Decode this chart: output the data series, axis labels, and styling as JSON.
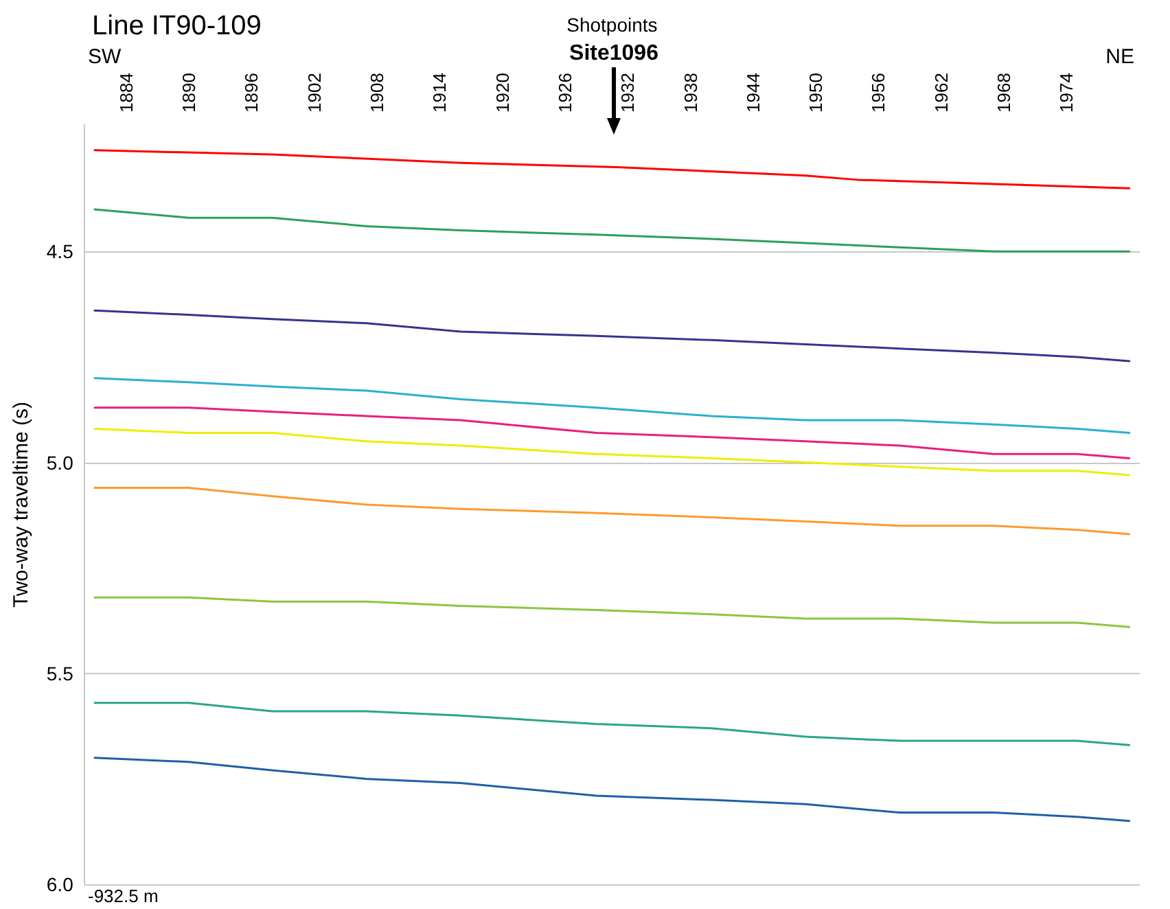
{
  "chart_data": {
    "type": "line",
    "title": "Line IT90-109",
    "xlabel": "Shotpoints",
    "ylabel": "Two-way traveltime (s)",
    "annotations": [
      "SW",
      "NE",
      "Site1096",
      "-932.5 m"
    ],
    "xlim": [
      1880,
      1981
    ],
    "xticks": [
      1884,
      1890,
      1896,
      1902,
      1908,
      1914,
      1920,
      1926,
      1932,
      1938,
      1944,
      1950,
      1956,
      1962,
      1968,
      1974
    ],
    "ylim": [
      6.0,
      4.2
    ],
    "yticks": [
      4.5,
      {
        "value": 5.0,
        "label": "5.0"
      },
      5.5,
      {
        "value": 6.0,
        "label": "6.0"
      }
    ],
    "grid": "y",
    "marker": "none",
    "line_style": "solid",
    "series": [
      {
        "color": "#ff0000",
        "x": [
          1881,
          1898,
          1916,
          1931,
          1949,
          1954,
          1967,
          1980
        ],
        "values": [
          4.26,
          4.27,
          4.29,
          4.3,
          4.32,
          4.33,
          4.34,
          4.35
        ]
      },
      {
        "color": "#2e9e5a",
        "x": [
          1881,
          1890,
          1898,
          1907,
          1916,
          1929,
          1940,
          1949,
          1958,
          1967,
          1975,
          1980
        ],
        "values": [
          4.4,
          4.42,
          4.42,
          4.44,
          4.45,
          4.46,
          4.47,
          4.48,
          4.49,
          4.5,
          4.5,
          4.5
        ]
      },
      {
        "color": "#35348f",
        "x": [
          1881,
          1890,
          1898,
          1907,
          1916,
          1929,
          1940,
          1949,
          1958,
          1967,
          1975,
          1980
        ],
        "values": [
          4.64,
          4.65,
          4.66,
          4.67,
          4.69,
          4.7,
          4.71,
          4.72,
          4.73,
          4.74,
          4.75,
          4.76
        ]
      },
      {
        "color": "#2ab0d0",
        "x": [
          1881,
          1890,
          1898,
          1907,
          1916,
          1929,
          1940,
          1949,
          1958,
          1967,
          1975,
          1980
        ],
        "values": [
          4.8,
          4.81,
          4.82,
          4.83,
          4.85,
          4.87,
          4.89,
          4.9,
          4.9,
          4.91,
          4.92,
          4.93
        ]
      },
      {
        "color": "#e8207a",
        "x": [
          1881,
          1890,
          1898,
          1907,
          1916,
          1929,
          1940,
          1949,
          1958,
          1967,
          1975,
          1980
        ],
        "values": [
          4.87,
          4.87,
          4.88,
          4.89,
          4.9,
          4.93,
          4.94,
          4.95,
          4.96,
          4.98,
          4.98,
          4.99
        ]
      },
      {
        "color": "#eeee00",
        "x": [
          1881,
          1890,
          1898,
          1907,
          1916,
          1929,
          1940,
          1949,
          1958,
          1967,
          1975,
          1980
        ],
        "values": [
          4.92,
          4.93,
          4.93,
          4.95,
          4.96,
          4.98,
          4.99,
          5.0,
          5.01,
          5.02,
          5.02,
          5.03
        ]
      },
      {
        "color": "#ff9a30",
        "x": [
          1881,
          1890,
          1898,
          1907,
          1916,
          1929,
          1940,
          1949,
          1958,
          1967,
          1975,
          1980
        ],
        "values": [
          5.06,
          5.06,
          5.08,
          5.1,
          5.11,
          5.12,
          5.13,
          5.14,
          5.15,
          5.15,
          5.16,
          5.17
        ]
      },
      {
        "color": "#8dc63f",
        "x": [
          1881,
          1890,
          1898,
          1907,
          1916,
          1929,
          1940,
          1949,
          1958,
          1967,
          1975,
          1980
        ],
        "values": [
          5.32,
          5.32,
          5.33,
          5.33,
          5.34,
          5.35,
          5.36,
          5.37,
          5.37,
          5.38,
          5.38,
          5.39
        ]
      },
      {
        "color": "#2aa58a",
        "x": [
          1881,
          1890,
          1898,
          1907,
          1916,
          1929,
          1940,
          1949,
          1958,
          1967,
          1975,
          1980
        ],
        "values": [
          5.57,
          5.57,
          5.59,
          5.59,
          5.6,
          5.62,
          5.63,
          5.65,
          5.66,
          5.66,
          5.66,
          5.67
        ]
      },
      {
        "color": "#1f5fa8",
        "x": [
          1881,
          1890,
          1898,
          1907,
          1916,
          1929,
          1940,
          1949,
          1958,
          1967,
          1975,
          1980
        ],
        "values": [
          5.7,
          5.71,
          5.73,
          5.75,
          5.76,
          5.79,
          5.8,
          5.81,
          5.83,
          5.83,
          5.84,
          5.85
        ]
      }
    ]
  }
}
